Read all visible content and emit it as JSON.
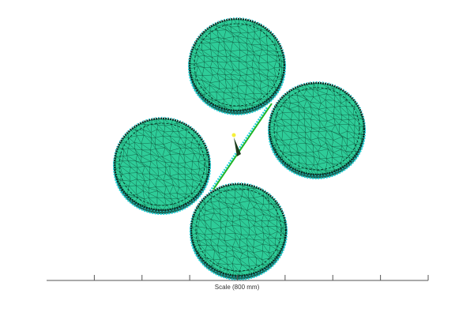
{
  "viewer": {
    "scale_label": "Scale (800 mm)",
    "scale_ticks": 8,
    "colors": {
      "mesh_fill": "#2ecc98",
      "mesh_lines": "#0b3d2a",
      "boundary_nodes": "#22d3d8",
      "link_element": "#22b422",
      "marker": "#f5f03a",
      "background": "#ffffff"
    },
    "bodies": [
      {
        "name": "disc-top"
      },
      {
        "name": "disc-right"
      },
      {
        "name": "disc-left"
      },
      {
        "name": "disc-bottom"
      }
    ]
  }
}
